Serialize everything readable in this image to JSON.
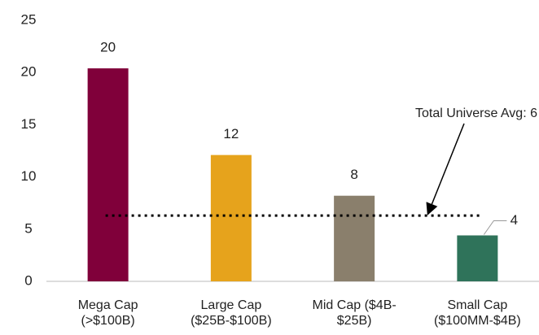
{
  "chart_data": {
    "type": "bar",
    "categories": [
      "Mega Cap\n(>$100B)",
      "Large Cap\n($25B-$100B)",
      "Mid Cap ($4B-\n$25B)",
      "Small Cap\n($100MM-$4B)"
    ],
    "values": [
      20.4,
      12.1,
      8.2,
      4.4
    ],
    "value_labels": [
      "20",
      "12",
      "8",
      "4"
    ],
    "colors": [
      "#80003a",
      "#e6a31c",
      "#8a7f6c",
      "#2f735a"
    ],
    "ylim": [
      0,
      25
    ],
    "yticks": [
      0,
      5,
      10,
      15,
      20,
      25
    ],
    "grid": false,
    "average": {
      "value": 6.3,
      "label": "Total Universe Avg: 6"
    }
  }
}
